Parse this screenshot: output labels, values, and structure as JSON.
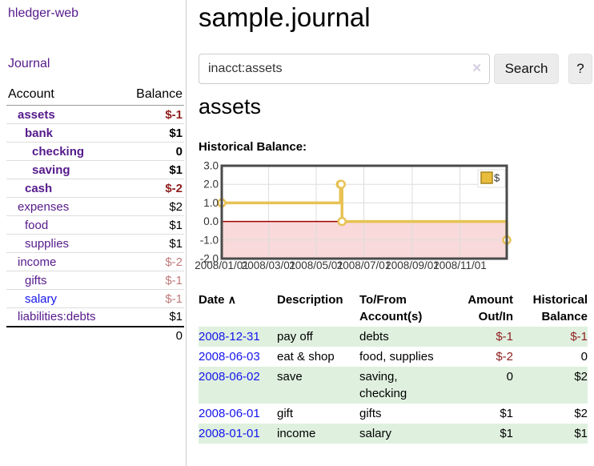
{
  "app": {
    "brand": "hledger-web",
    "nav_journal": "Journal"
  },
  "sidebar": {
    "header": {
      "account": "Account",
      "balance": "Balance"
    },
    "accounts": [
      {
        "name": "assets",
        "balance": "$-1",
        "depth": 0,
        "bold": true,
        "neg": "strong",
        "blue": false
      },
      {
        "name": "bank",
        "balance": "$1",
        "depth": 1,
        "bold": true,
        "neg": "",
        "blue": false
      },
      {
        "name": "checking",
        "balance": "0",
        "depth": 2,
        "bold": true,
        "neg": "",
        "blue": false
      },
      {
        "name": "saving",
        "balance": "$1",
        "depth": 2,
        "bold": true,
        "neg": "",
        "blue": false
      },
      {
        "name": "cash",
        "balance": "$-2",
        "depth": 1,
        "bold": true,
        "neg": "strong",
        "blue": false
      },
      {
        "name": "expenses",
        "balance": "$2",
        "depth": 0,
        "bold": false,
        "neg": "",
        "blue": false
      },
      {
        "name": "food",
        "balance": "$1",
        "depth": 1,
        "bold": false,
        "neg": "",
        "blue": false
      },
      {
        "name": "supplies",
        "balance": "$1",
        "depth": 1,
        "bold": false,
        "neg": "",
        "blue": false
      },
      {
        "name": "income",
        "balance": "$-2",
        "depth": 0,
        "bold": false,
        "neg": "dim",
        "blue": false
      },
      {
        "name": "gifts",
        "balance": "$-1",
        "depth": 1,
        "bold": false,
        "neg": "dim",
        "blue": false
      },
      {
        "name": "salary",
        "balance": "$-1",
        "depth": 1,
        "bold": false,
        "neg": "dim",
        "blue": true
      },
      {
        "name": "liabilities:debts",
        "balance": "$1",
        "depth": 0,
        "bold": false,
        "neg": "",
        "blue": false
      }
    ],
    "total": "0"
  },
  "header": {
    "title": "sample.journal"
  },
  "search": {
    "value": "inacct:assets",
    "clear_icon": "✕",
    "button": "Search",
    "help": "?"
  },
  "main": {
    "account_title": "assets",
    "chart_label": "Historical Balance:"
  },
  "chart_data": {
    "type": "line",
    "step": true,
    "title": "Historical Balance:",
    "legend": "$",
    "legend_position": "top-right",
    "grid": true,
    "ylim": [
      -2.0,
      3.0
    ],
    "yticks": [
      "3.0",
      "2.0",
      "1.0",
      "0.0",
      "-1.0",
      "-2.0"
    ],
    "ytick_values": [
      3,
      2,
      1,
      0,
      -1,
      -2
    ],
    "xticks": [
      "2008/01/01",
      "2008/03/01",
      "2008/05/01",
      "2008/07/01",
      "2008/09/01",
      "2008/11/01"
    ],
    "xlim": [
      "2008-01-01",
      "2008-12-31"
    ],
    "series": [
      {
        "name": "$",
        "points": [
          {
            "date": "2008-01-01",
            "value": 1
          },
          {
            "date": "2008-06-01",
            "value": 2
          },
          {
            "date": "2008-06-02",
            "value": 2
          },
          {
            "date": "2008-06-03",
            "value": 0
          },
          {
            "date": "2008-12-31",
            "value": -1
          }
        ]
      }
    ],
    "line_color": "#e8c254",
    "marker_fill": "#ffffff",
    "negative_fill": "#f9d9d9",
    "zero_line_color": "#a00000",
    "grid_color": "#dddddd",
    "border_color": "#4a4a4a"
  },
  "table": {
    "sort_icon": "∧",
    "headers": {
      "date": "Date",
      "description": "Description",
      "accounts": "To/From Account(s)",
      "amount": "Amount Out/In",
      "balance": "Historical Balance"
    },
    "rows": [
      {
        "date": "2008-12-31",
        "description": "pay off",
        "accounts": "debts",
        "amount": "$-1",
        "balance": "$-1"
      },
      {
        "date": "2008-06-03",
        "description": "eat & shop",
        "accounts": "food, supplies",
        "amount": "$-2",
        "balance": "0"
      },
      {
        "date": "2008-06-02",
        "description": "save",
        "accounts": "saving, checking",
        "amount": "0",
        "balance": "$2"
      },
      {
        "date": "2008-06-01",
        "description": "gift",
        "accounts": "gifts",
        "amount": "$1",
        "balance": "$2"
      },
      {
        "date": "2008-01-01",
        "description": "income",
        "accounts": "salary",
        "amount": "$1",
        "balance": "$1"
      }
    ]
  }
}
